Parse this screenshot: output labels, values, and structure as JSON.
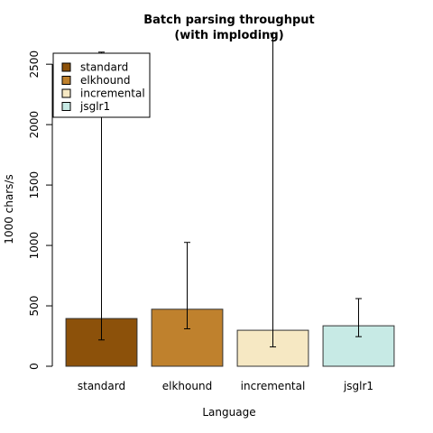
{
  "chart_data": {
    "type": "bar",
    "title_lines": [
      "Batch parsing throughput",
      "(with imploding)"
    ],
    "xlabel": "Language",
    "ylabel": "1000 chars/s",
    "categories": [
      "standard",
      "elkhound",
      "incremental",
      "jsglr1"
    ],
    "values": [
      395,
      472,
      298,
      335
    ],
    "error_low": [
      218,
      310,
      160,
      245
    ],
    "error_high": [
      2600,
      1025,
      2755,
      560
    ],
    "colors": [
      "#8c510a",
      "#bf812d",
      "#f6e8c3",
      "#c7eae5"
    ],
    "ylim": [
      0,
      2800
    ],
    "yticks": [
      0,
      500,
      1000,
      1500,
      2000,
      2500
    ],
    "legend": {
      "position": "top-left",
      "entries": [
        "standard",
        "elkhound",
        "incremental",
        "jsglr1"
      ]
    },
    "grid": false
  }
}
